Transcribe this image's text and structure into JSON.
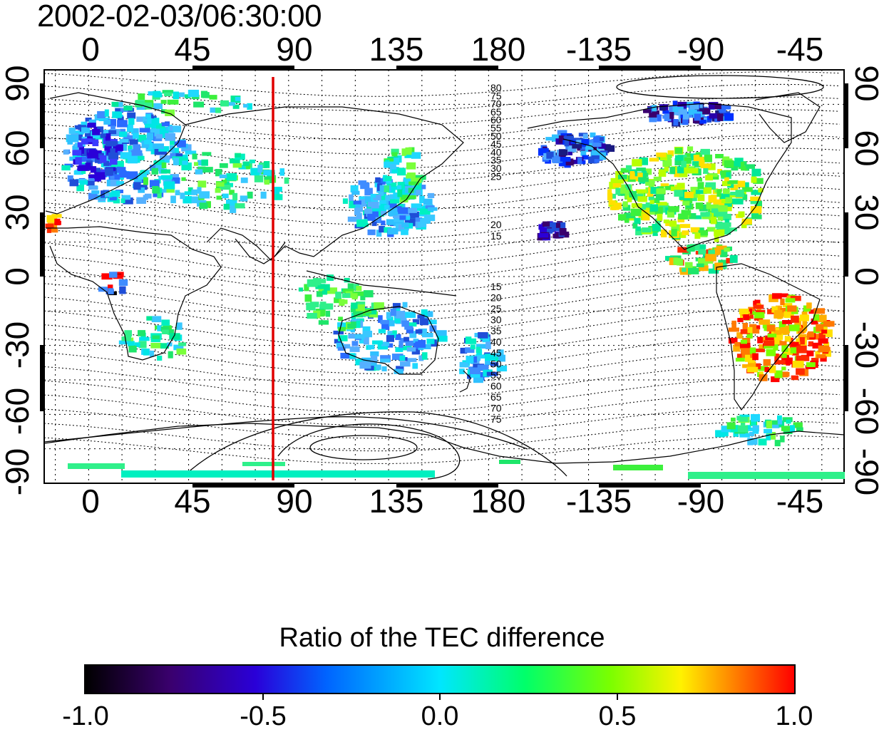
{
  "title": "2002-02-03/06:30:00",
  "x_ticks": [
    "0",
    "45",
    "90",
    "135",
    "180",
    "-135",
    "-90",
    "-45"
  ],
  "y_ticks": [
    "90",
    "60",
    "30",
    "0",
    "-30",
    "-60",
    "-90"
  ],
  "contour_labels_north": [
    "80",
    "75",
    "70",
    "65",
    "60",
    "55",
    "50",
    "45",
    "40",
    "35",
    "30",
    "25",
    "20",
    "15"
  ],
  "contour_labels_south": [
    "15",
    "20",
    "25",
    "30",
    "35",
    "40",
    "45",
    "50",
    "55",
    "60",
    "65",
    "70",
    "75"
  ],
  "meridian_marker_longitude": 83,
  "colorbar": {
    "title": "Ratio of the TEC difference",
    "labels": [
      "-1.0",
      "-0.5",
      "0.0",
      "0.5",
      "1.0"
    ],
    "range": [
      -1.0,
      1.0
    ]
  },
  "colors": {
    "marker_line": "#e00000",
    "grid": "#000000"
  }
}
